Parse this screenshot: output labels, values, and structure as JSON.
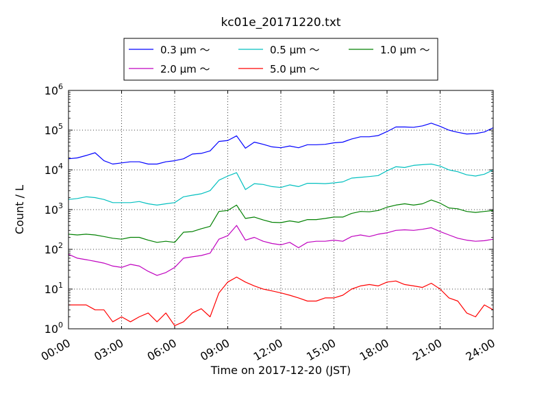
{
  "chart_data": {
    "type": "line",
    "title": "kc01e_20171220.txt",
    "xlabel": "Time on 2017-12-20 (JST)",
    "ylabel": "Count / L",
    "y_scale": "log",
    "ylim": [
      1,
      1000000
    ],
    "xlim": [
      "00:00",
      "24:00"
    ],
    "x_ticks": [
      "00:00",
      "03:00",
      "06:00",
      "09:00",
      "12:00",
      "15:00",
      "18:00",
      "21:00",
      "24:00"
    ],
    "y_ticks": [
      {
        "base": "10",
        "exp": "0",
        "value": 1
      },
      {
        "base": "10",
        "exp": "1",
        "value": 10
      },
      {
        "base": "10",
        "exp": "2",
        "value": 100
      },
      {
        "base": "10",
        "exp": "3",
        "value": 1000
      },
      {
        "base": "10",
        "exp": "4",
        "value": 10000
      },
      {
        "base": "10",
        "exp": "5",
        "value": 100000
      },
      {
        "base": "10",
        "exp": "6",
        "value": 1000000
      }
    ],
    "grid": true,
    "legend_position": "top",
    "x": [
      "00:00",
      "00:30",
      "01:00",
      "01:30",
      "02:00",
      "02:30",
      "03:00",
      "03:30",
      "04:00",
      "04:30",
      "05:00",
      "05:30",
      "06:00",
      "06:30",
      "07:00",
      "07:30",
      "08:00",
      "08:30",
      "09:00",
      "09:30",
      "10:00",
      "10:30",
      "11:00",
      "11:30",
      "12:00",
      "12:30",
      "13:00",
      "13:30",
      "14:00",
      "14:30",
      "15:00",
      "15:30",
      "16:00",
      "16:30",
      "17:00",
      "17:30",
      "18:00",
      "18:30",
      "19:00",
      "19:30",
      "20:00",
      "20:30",
      "21:00",
      "21:30",
      "22:00",
      "22:30",
      "23:00",
      "23:30",
      "24:00"
    ],
    "series": [
      {
        "name": "0.3 μm ～",
        "color": "#0000ff",
        "values": [
          19000,
          20000,
          23000,
          27000,
          17000,
          14000,
          15000,
          16000,
          16000,
          14000,
          14000,
          16000,
          17000,
          19000,
          25000,
          26000,
          30000,
          52000,
          55000,
          72000,
          35000,
          50000,
          44000,
          38000,
          36000,
          40000,
          36000,
          43000,
          43000,
          44000,
          48000,
          50000,
          60000,
          68000,
          68000,
          73000,
          92000,
          120000,
          120000,
          118000,
          128000,
          150000,
          125000,
          100000,
          88000,
          80000,
          82000,
          90000,
          115000
        ]
      },
      {
        "name": "0.5 μm ～",
        "color": "#00bfbf",
        "values": [
          1800,
          1900,
          2100,
          2000,
          1800,
          1500,
          1500,
          1500,
          1600,
          1400,
          1300,
          1400,
          1500,
          2100,
          2300,
          2500,
          3000,
          5500,
          7000,
          8500,
          3200,
          4500,
          4300,
          3800,
          3600,
          4200,
          3800,
          4600,
          4600,
          4500,
          4700,
          5000,
          6200,
          6500,
          6800,
          7200,
          9500,
          12000,
          11500,
          13000,
          13500,
          14000,
          12500,
          10000,
          9000,
          7500,
          7000,
          7800,
          10000
        ]
      },
      {
        "name": "1.0 μm ～",
        "color": "#008000",
        "values": [
          240,
          230,
          240,
          230,
          210,
          190,
          180,
          200,
          200,
          170,
          150,
          160,
          150,
          270,
          280,
          330,
          380,
          900,
          950,
          1300,
          600,
          650,
          550,
          480,
          470,
          520,
          480,
          560,
          560,
          600,
          650,
          650,
          800,
          900,
          880,
          950,
          1150,
          1300,
          1400,
          1300,
          1400,
          1750,
          1450,
          1100,
          1050,
          900,
          850,
          900,
          950
        ]
      },
      {
        "name": "2.0 μm ～",
        "color": "#bf00bf",
        "values": [
          75,
          60,
          55,
          50,
          45,
          38,
          35,
          42,
          38,
          28,
          22,
          26,
          35,
          60,
          65,
          70,
          80,
          180,
          220,
          400,
          170,
          200,
          160,
          140,
          130,
          150,
          110,
          150,
          160,
          160,
          170,
          160,
          210,
          230,
          210,
          240,
          260,
          300,
          310,
          300,
          320,
          350,
          280,
          230,
          190,
          170,
          160,
          165,
          180
        ]
      },
      {
        "name": "5.0 μm ～",
        "color": "#ff0000",
        "values": [
          4,
          4,
          4,
          3,
          3,
          1.5,
          2,
          1.5,
          2,
          2.5,
          1.5,
          2.5,
          1.2,
          1.5,
          2.5,
          3.2,
          2,
          8,
          15,
          20,
          15,
          12,
          10,
          9,
          8,
          7,
          6,
          5,
          5,
          6,
          6,
          7,
          10,
          12,
          13,
          12,
          15,
          16,
          13,
          12,
          11,
          14,
          10,
          6,
          5,
          2.5,
          2,
          4,
          3
        ]
      }
    ]
  }
}
